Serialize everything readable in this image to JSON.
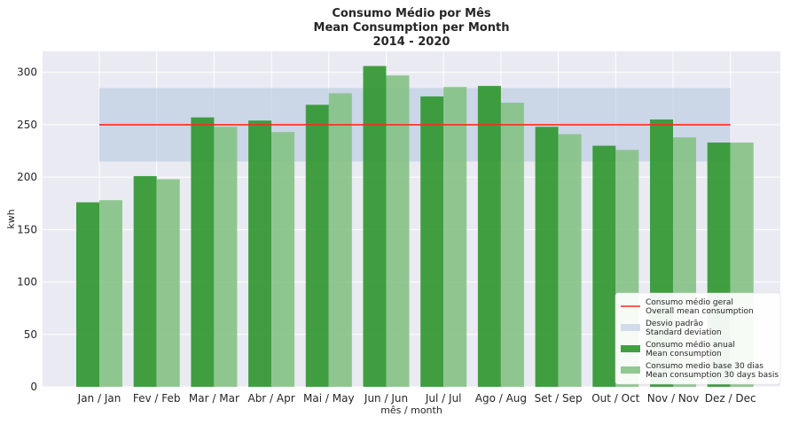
{
  "chart_data": {
    "type": "bar",
    "title": [
      "Consumo Médio por Mês",
      "Mean Consumption per Month",
      "2014 - 2020"
    ],
    "xlabel": "mês / month",
    "ylabel": "kwh",
    "ylim": [
      0,
      320
    ],
    "yticks": [
      0,
      50,
      100,
      150,
      200,
      250,
      300
    ],
    "categories": [
      "Jan / Jan",
      "Fev / Feb",
      "Mar / Mar",
      "Abr / Apr",
      "Mai / May",
      "Jun / Jun",
      "Jul / Jul",
      "Ago / Aug",
      "Set / Sep",
      "Out / Oct",
      "Nov / Nov",
      "Dez / Dec"
    ],
    "series": [
      {
        "name": "Consumo médio anual\nMean consumption",
        "color": "#2e962e",
        "values": [
          176,
          201,
          257,
          254,
          269,
          306,
          277,
          287,
          248,
          230,
          255,
          233
        ]
      },
      {
        "name": "Consumo medio base 30 dias\nMean consumption 30 days basis",
        "color": "#85c285",
        "values": [
          178,
          198,
          248,
          243,
          280,
          297,
          286,
          271,
          241,
          226,
          238,
          233
        ]
      }
    ],
    "overall_mean": {
      "name": "Consumo médio geral\nOverall mean consumption",
      "value": 250,
      "color": "#ff2a1a"
    },
    "std_band": {
      "name": "Desvio padrão\nStandard deviation",
      "lower": 215,
      "upper": 285,
      "color": "#b0c4de"
    },
    "legend_position": "lower-right",
    "grid": true
  }
}
